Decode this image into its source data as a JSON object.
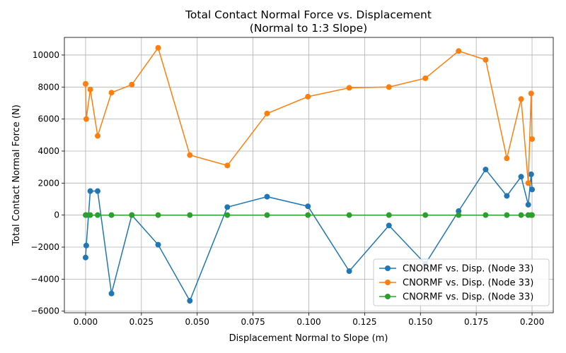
{
  "chart_data": {
    "type": "line",
    "title": "Total Contact Normal Force vs. Displacement",
    "subtitle": "(Normal to 1:3 Slope)",
    "xlabel": "Displacement Normal to Slope (m)",
    "ylabel": "Total Contact Normal Force (N)",
    "xlim": [
      -0.0095,
      0.2095
    ],
    "ylim": [
      -6100,
      11100
    ],
    "xticks": [
      0.0,
      0.025,
      0.05,
      0.075,
      0.1,
      0.125,
      0.15,
      0.175,
      0.2
    ],
    "xtick_labels": [
      "0.000",
      "0.025",
      "0.050",
      "0.075",
      "0.100",
      "0.125",
      "0.150",
      "0.175",
      "0.200"
    ],
    "yticks": [
      -6000,
      -4000,
      -2000,
      0,
      2000,
      4000,
      6000,
      8000,
      10000
    ],
    "ytick_labels": [
      "−6000",
      "−4000",
      "−2000",
      "0",
      "2000",
      "4000",
      "6000",
      "8000",
      "10000"
    ],
    "grid": true,
    "legend_position": "bottom-right",
    "series": [
      {
        "name": "CNORMF vs. Disp. (Node 33)",
        "color": "#1f77b4",
        "x": [
          0.0,
          0.0003,
          0.0021,
          0.0054,
          0.0116,
          0.0207,
          0.0325,
          0.0467,
          0.0635,
          0.0813,
          0.0996,
          0.1181,
          0.1359,
          0.1522,
          0.1671,
          0.1792,
          0.1887,
          0.1951,
          0.1983,
          0.1996,
          0.2
        ],
        "y": [
          -2650,
          -1900,
          1500,
          1500,
          -4900,
          0,
          -1850,
          -5350,
          500,
          1150,
          550,
          -3500,
          -650,
          -3050,
          250,
          2850,
          1200,
          2400,
          650,
          2550,
          1600
        ]
      },
      {
        "name": "CNORMF vs. Disp. (Node 33)",
        "color": "#ff7f0e",
        "x": [
          0.0,
          0.0003,
          0.0021,
          0.0054,
          0.0116,
          0.0207,
          0.0325,
          0.0467,
          0.0635,
          0.0813,
          0.0996,
          0.1181,
          0.1359,
          0.1522,
          0.1671,
          0.1792,
          0.1887,
          0.1951,
          0.1983,
          0.1996,
          0.2
        ],
        "y": [
          8200,
          6000,
          7850,
          4950,
          7650,
          8150,
          10450,
          3750,
          3100,
          6350,
          7400,
          7950,
          8000,
          8550,
          10250,
          9700,
          3550,
          7250,
          2000,
          7600,
          4750
        ]
      },
      {
        "name": "CNORMF vs. Disp. (Node 33)",
        "color": "#2ca02c",
        "x": [
          0.0,
          0.0003,
          0.0021,
          0.0054,
          0.0116,
          0.0207,
          0.0325,
          0.0467,
          0.0635,
          0.0813,
          0.0996,
          0.1181,
          0.1359,
          0.1522,
          0.1671,
          0.1792,
          0.1887,
          0.1951,
          0.1983,
          0.1996,
          0.2
        ],
        "y": [
          0,
          0,
          0,
          0,
          0,
          0,
          0,
          0,
          0,
          0,
          0,
          0,
          0,
          0,
          0,
          0,
          0,
          0,
          0,
          0,
          0
        ]
      }
    ]
  }
}
